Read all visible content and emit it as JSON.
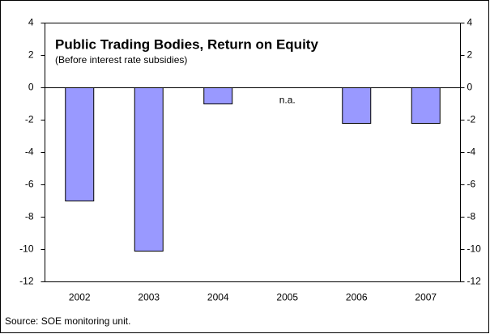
{
  "chart_data": {
    "type": "bar",
    "title": "Public Trading Bodies, Return on Equity",
    "subtitle": "(Before interest rate subsidies)",
    "source": "Source: SOE monitoring unit.",
    "categories": [
      "2002",
      "2003",
      "2004",
      "2005",
      "2006",
      "2007"
    ],
    "values": [
      -7,
      -10.1,
      -1,
      null,
      -2.2,
      -2.2
    ],
    "value_labels": [
      null,
      null,
      null,
      "n.a.",
      null,
      null
    ],
    "color": "#9999ff",
    "ylim": [
      -12,
      4
    ],
    "yticks": [
      -12,
      -10,
      -8,
      -6,
      -4,
      -2,
      0,
      2,
      4
    ],
    "y2lim": [
      -12,
      4
    ],
    "y2ticks": [
      -12,
      -10,
      -8,
      -6,
      -4,
      -2,
      0,
      2,
      4
    ],
    "grid": false
  }
}
